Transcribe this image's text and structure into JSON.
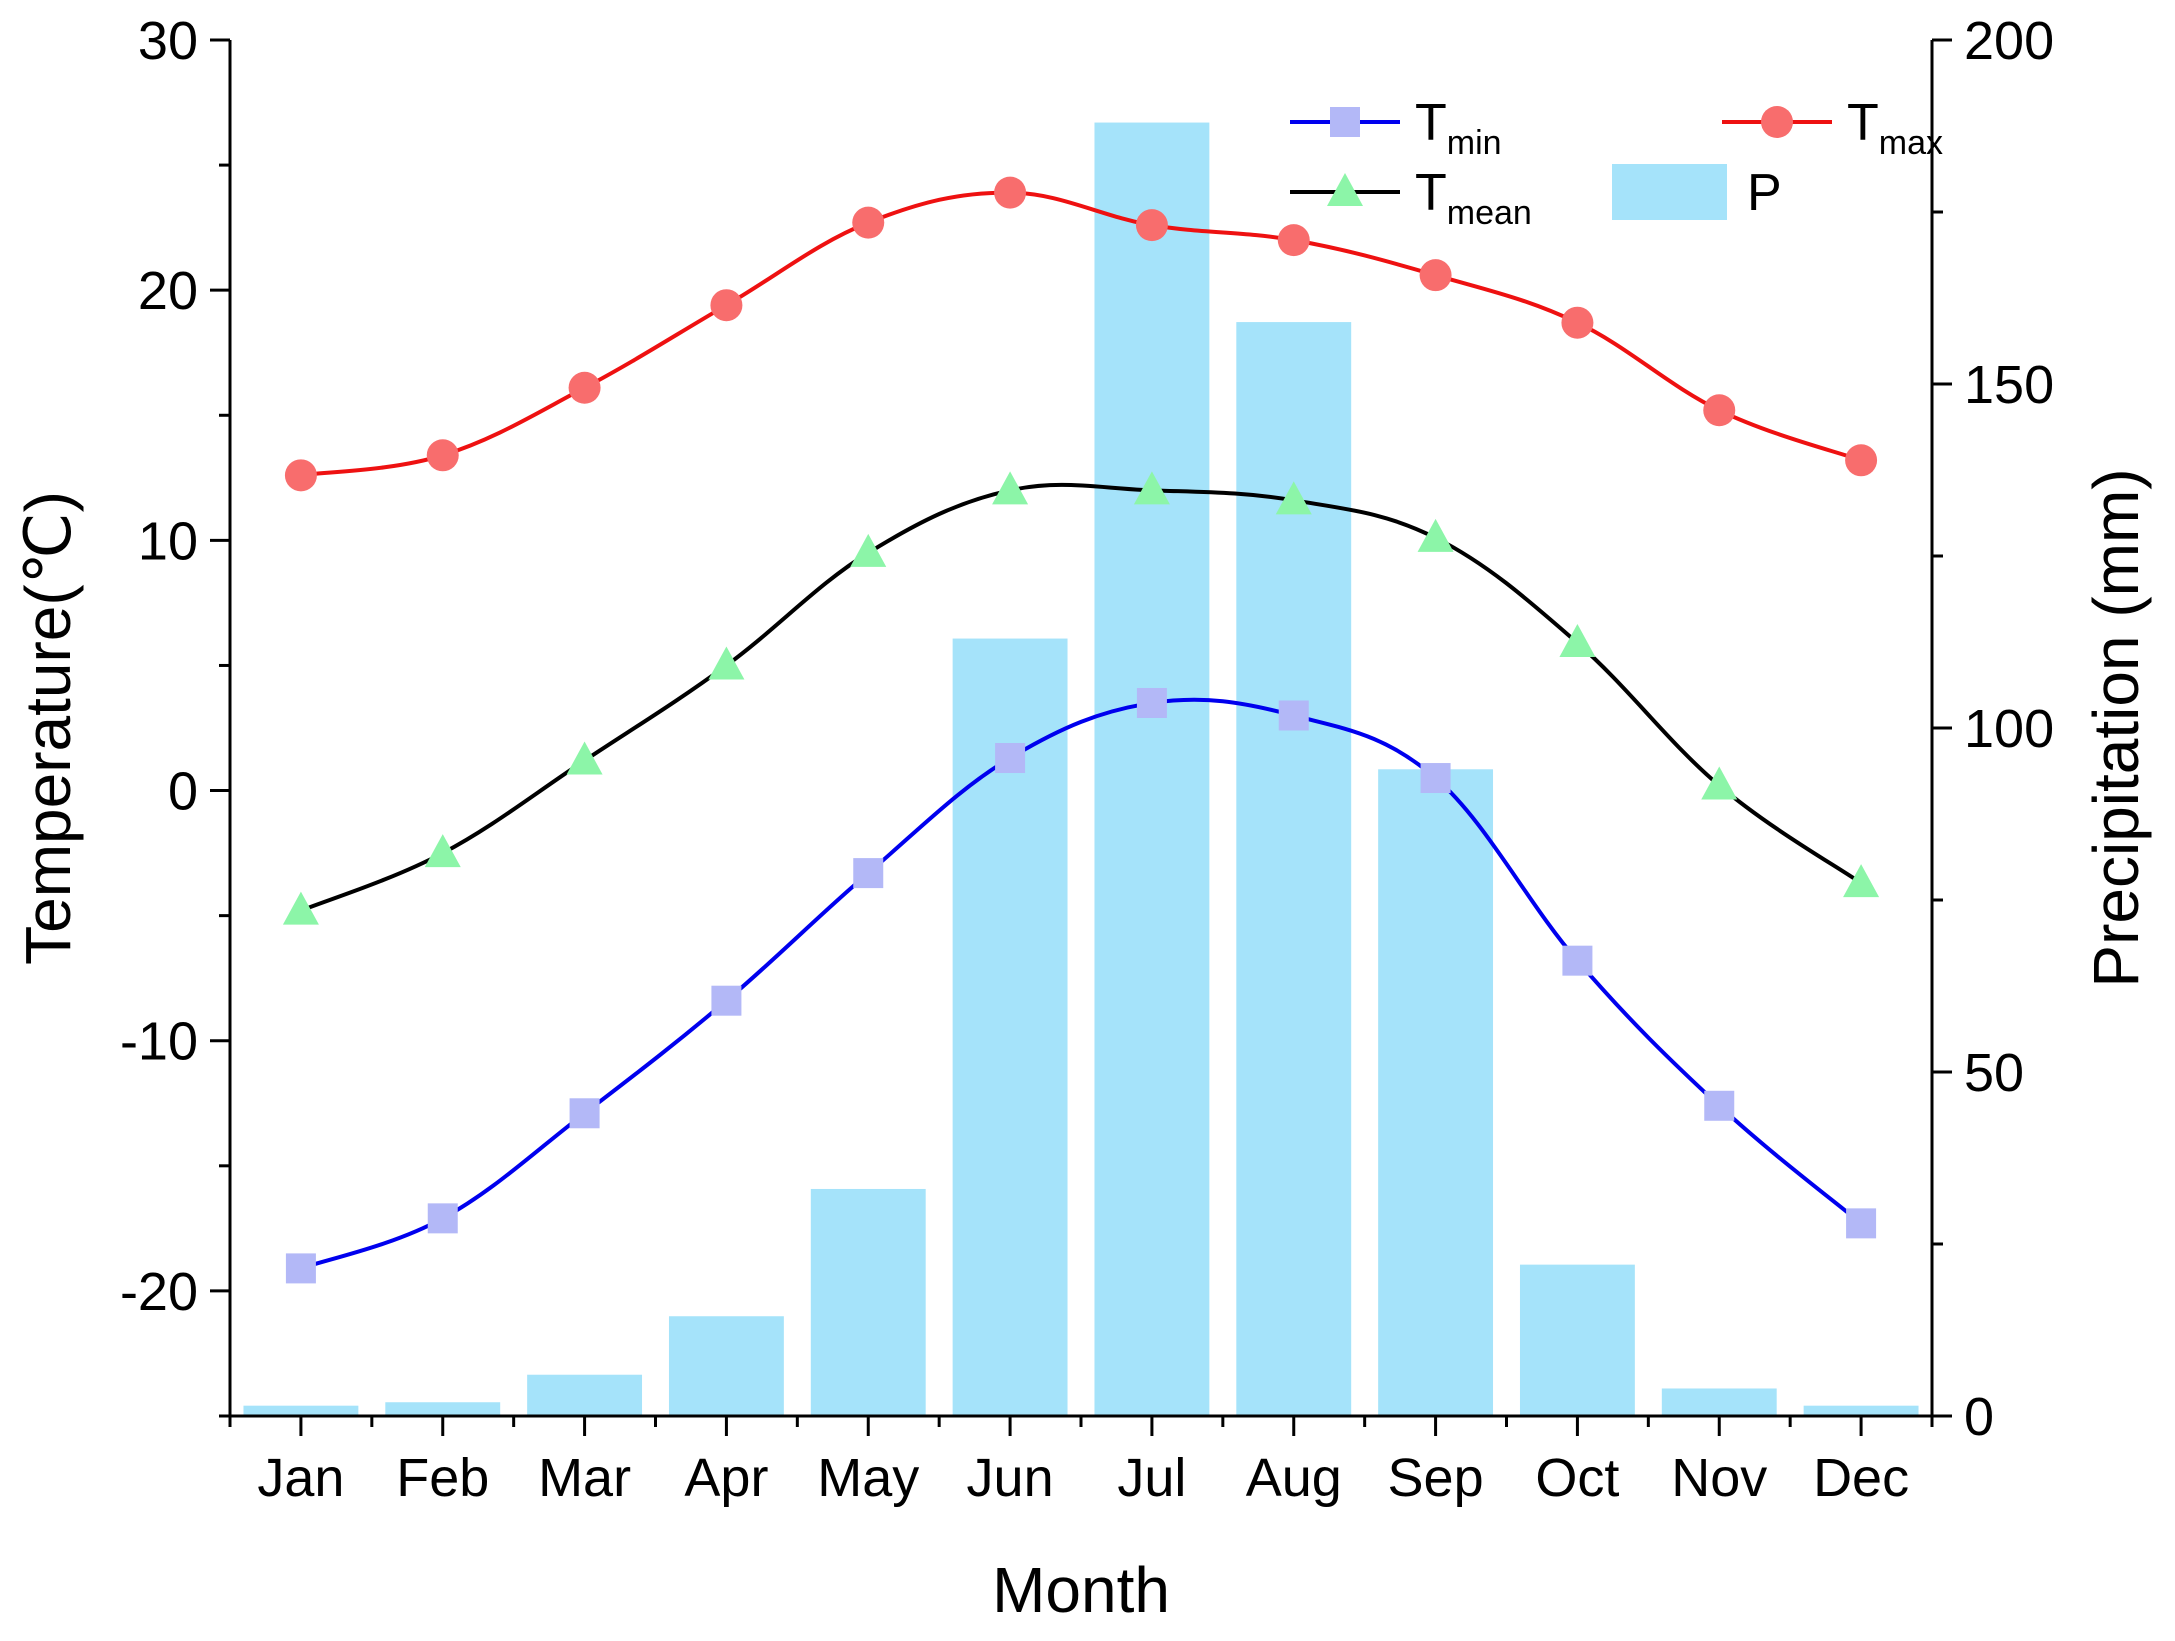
{
  "chart_data": {
    "type": "bar+line",
    "categories": [
      "Jan",
      "Feb",
      "Mar",
      "Apr",
      "May",
      "Jun",
      "Jul",
      "Aug",
      "Sep",
      "Oct",
      "Nov",
      "Dec"
    ],
    "xlabel": "Month",
    "ylabel_left": "Temperature(℃)",
    "ylabel_right": "Precipitation (mm)",
    "ylim_left": [
      -25,
      30
    ],
    "ylim_right": [
      0,
      200
    ],
    "yticks_left": [
      "30",
      "20",
      "10",
      "0",
      "-10",
      "-20"
    ],
    "yticks_left_values": [
      30,
      20,
      10,
      0,
      -10,
      -20
    ],
    "yticks_right": [
      "200",
      "150",
      "100",
      "50",
      "0"
    ],
    "yticks_right_values": [
      200,
      150,
      100,
      50,
      0
    ],
    "grid": false,
    "legend_position": "top-right (inside)",
    "series": [
      {
        "name": "T",
        "subscript": "min",
        "kind": "line",
        "axis": "left",
        "color": "#0000ee",
        "marker": "square",
        "marker_color": "#b3b8f7",
        "values": [
          -19.1,
          -17.1,
          -12.9,
          -8.4,
          -3.3,
          1.3,
          3.5,
          3.0,
          0.5,
          -6.8,
          -12.6,
          -17.3
        ]
      },
      {
        "name": "T",
        "subscript": "max",
        "kind": "line",
        "axis": "left",
        "color": "#ee1111",
        "marker": "circle",
        "marker_color": "#f86d6d",
        "values": [
          12.6,
          13.4,
          16.1,
          19.4,
          22.7,
          23.9,
          22.6,
          22.0,
          20.6,
          18.7,
          15.2,
          13.2
        ]
      },
      {
        "name": "T",
        "subscript": "mean",
        "kind": "line",
        "axis": "left",
        "color": "#000000",
        "marker": "triangle",
        "marker_color": "#8cf5a8",
        "values": [
          -4.8,
          -2.5,
          1.2,
          5.0,
          9.5,
          12.0,
          12.0,
          11.6,
          10.1,
          5.9,
          0.2,
          -3.7
        ]
      },
      {
        "name": "P",
        "kind": "bar",
        "axis": "right",
        "color": "#a5e3fa",
        "values": [
          1.5,
          2.0,
          6.0,
          14.5,
          33.0,
          113.0,
          188.0,
          159.0,
          94.0,
          22.0,
          4.0,
          1.5
        ]
      }
    ]
  }
}
